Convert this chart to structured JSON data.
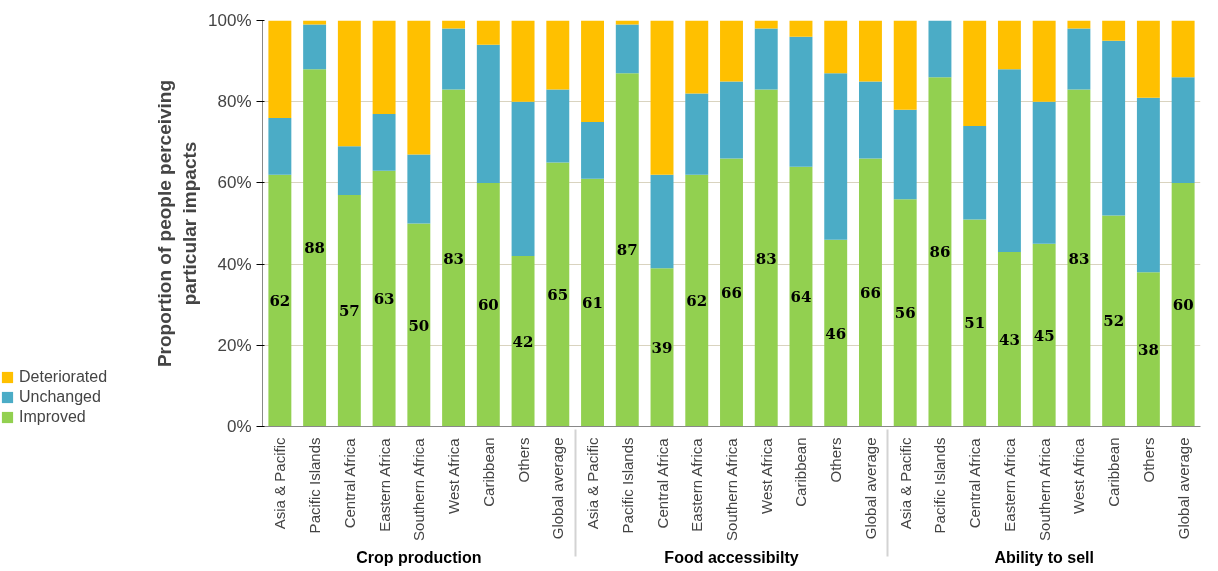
{
  "chart_data": {
    "type": "bar",
    "stacked": true,
    "ylabel": "Proportion of people perceiving particular impacts",
    "categories": [
      "Asia & Pacific",
      "Pacific Islands",
      "Central Africa",
      "Eastern Africa",
      "Southern Africa",
      "West Africa",
      "Caribbean",
      "Others",
      "Global average",
      "Asia & Pacific",
      "Pacific Islands",
      "Central Africa",
      "Eastern Africa",
      "Southern Africa",
      "West Africa",
      "Caribbean",
      "Others",
      "Global average",
      "Asia & Pacific",
      "Pacific Islands",
      "Central Africa",
      "Eastern Africa",
      "Southern Africa",
      "West Africa",
      "Caribbean",
      "Others",
      "Global average"
    ],
    "annotations": [
      "Crop production",
      "Food accessibilty",
      "Ability to sell"
    ],
    "series": [
      {
        "name": "Improved",
        "color": "#92d050",
        "values": [
          62,
          88,
          57,
          63,
          50,
          83,
          60,
          42,
          65,
          61,
          87,
          39,
          62,
          66,
          83,
          64,
          46,
          66,
          56,
          86,
          51,
          43,
          45,
          83,
          52,
          38,
          60
        ],
        "value_labels": [
          "62",
          "88",
          "57",
          "63",
          "50",
          "83",
          "60",
          "42",
          "65",
          "61",
          "87",
          "39",
          "62",
          "66",
          "83",
          "64",
          "46",
          "66",
          "56",
          "86",
          "51",
          "43",
          "45",
          "83",
          "52",
          "38",
          "60"
        ]
      },
      {
        "name": "Unchanged",
        "color": "#4bacc6",
        "values": [
          14,
          11,
          12,
          14,
          17,
          15,
          34,
          38,
          18,
          14,
          12,
          23,
          20,
          19,
          15,
          32,
          41,
          19,
          22,
          14,
          23,
          45,
          35,
          15,
          43,
          43,
          26
        ]
      },
      {
        "name": "Deteriorated",
        "color": "#ffc000",
        "values": [
          24,
          1,
          31,
          23,
          33,
          2,
          6,
          20,
          17,
          25,
          1,
          38,
          18,
          15,
          2,
          4,
          13,
          15,
          22,
          0,
          26,
          12,
          20,
          2,
          5,
          19,
          14
        ]
      }
    ],
    "ylim": [
      0,
      100
    ],
    "yticks": [
      {
        "value": 0,
        "label": "0%"
      },
      {
        "value": 20,
        "label": "20%"
      },
      {
        "value": 40,
        "label": "40%"
      },
      {
        "value": 60,
        "label": "60%"
      },
      {
        "value": 80,
        "label": "80%"
      },
      {
        "value": 100,
        "label": "100%"
      }
    ],
    "grid": "y",
    "legend": "bottom left"
  }
}
